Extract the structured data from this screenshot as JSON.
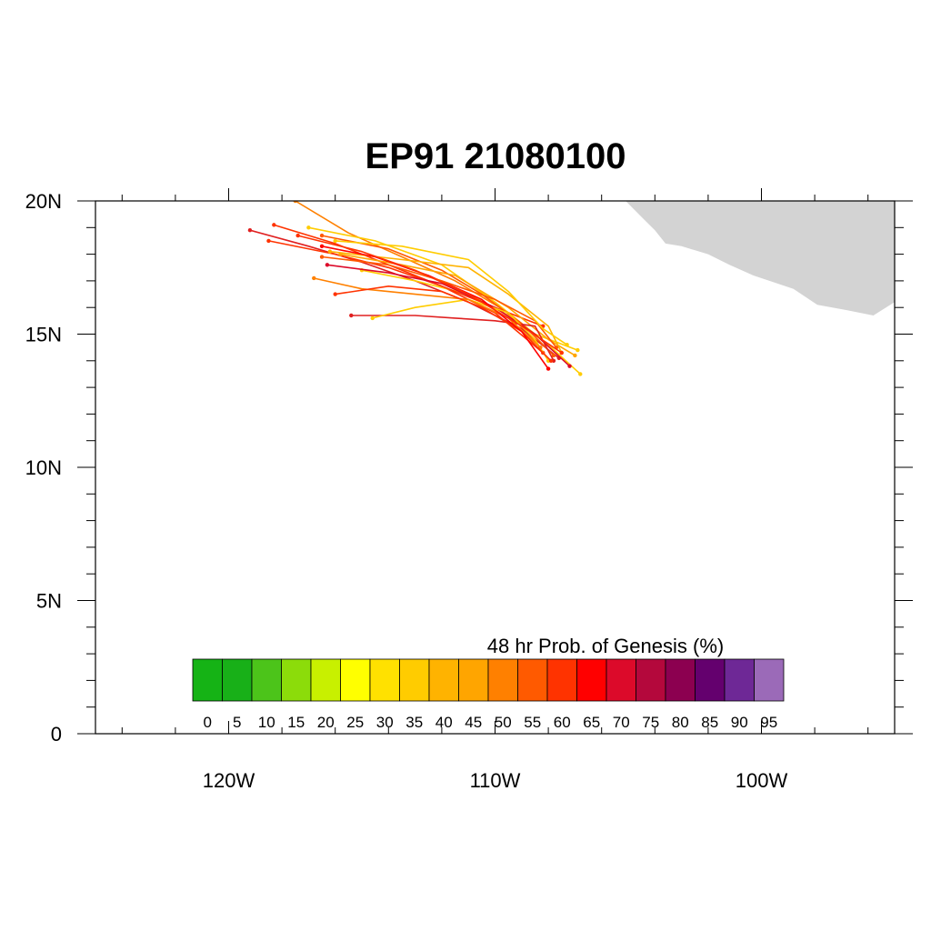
{
  "title": "EP91 21080100",
  "axes": {
    "lat_labels": [
      "20N",
      "15N",
      "10N",
      "5N",
      "0"
    ],
    "lon_labels": [
      "120W",
      "110W",
      "100W"
    ],
    "lat_range": [
      0,
      20
    ],
    "lon_range": [
      -125,
      -95
    ]
  },
  "colorbar": {
    "title": "48 hr Prob. of Genesis (%)",
    "levels": [
      "0",
      "5",
      "10",
      "15",
      "20",
      "25",
      "30",
      "35",
      "40",
      "45",
      "50",
      "55",
      "60",
      "65",
      "70",
      "75",
      "80",
      "85",
      "90",
      "95"
    ],
    "colors": [
      "#15b315",
      "#18b018",
      "#4cc41a",
      "#8cdc0a",
      "#c8f000",
      "#ffff00",
      "#ffe100",
      "#ffcc00",
      "#ffb300",
      "#ffa500",
      "#ff8000",
      "#ff5a00",
      "#ff3300",
      "#ff0000",
      "#dc0a2a",
      "#b4083c",
      "#8c0050",
      "#64006e",
      "#6e2896",
      "#9b6ab8"
    ]
  },
  "land": {
    "color": "#d3d3d3"
  },
  "chart_data": {
    "type": "line",
    "tracks": [
      {
        "color": "#ff8000",
        "points": [
          [
            -117.5,
            20.0
          ],
          [
            -115.5,
            18.8
          ],
          [
            -113.5,
            17.9
          ],
          [
            -111.5,
            17.0
          ],
          [
            -109.5,
            15.8
          ],
          [
            -108.3,
            14.5
          ]
        ]
      },
      {
        "color": "#e02020",
        "points": [
          [
            -119.2,
            18.9
          ],
          [
            -117.0,
            18.3
          ],
          [
            -115.0,
            17.7
          ],
          [
            -113.0,
            17.0
          ],
          [
            -111.0,
            16.2
          ],
          [
            -109.0,
            15.2
          ],
          [
            -107.6,
            14.1
          ]
        ]
      },
      {
        "color": "#ff3300",
        "points": [
          [
            -118.3,
            19.1
          ],
          [
            -116.0,
            18.4
          ],
          [
            -114.0,
            17.6
          ],
          [
            -112.0,
            16.8
          ],
          [
            -110.0,
            15.8
          ],
          [
            -108.2,
            14.3
          ]
        ]
      },
      {
        "color": "#ffcc00",
        "points": [
          [
            -117.0,
            19.0
          ],
          [
            -114.5,
            18.5
          ],
          [
            -112.0,
            17.6
          ],
          [
            -110.0,
            16.2
          ],
          [
            -108.5,
            15.0
          ],
          [
            -106.9,
            14.4
          ]
        ]
      },
      {
        "color": "#ffcc00",
        "points": [
          [
            -115.0,
            17.4
          ],
          [
            -113.0,
            17.0
          ],
          [
            -111.0,
            16.5
          ],
          [
            -109.5,
            15.7
          ],
          [
            -108.0,
            14.6
          ],
          [
            -106.8,
            13.5
          ]
        ]
      },
      {
        "color": "#ff5a00",
        "points": [
          [
            -116.5,
            18.7
          ],
          [
            -114.0,
            18.2
          ],
          [
            -112.0,
            17.4
          ],
          [
            -110.5,
            16.5
          ],
          [
            -109.0,
            15.4
          ],
          [
            -107.8,
            14.2
          ]
        ]
      },
      {
        "color": "#ff3300",
        "points": [
          [
            -118.5,
            18.5
          ],
          [
            -116.0,
            18.0
          ],
          [
            -114.0,
            17.5
          ],
          [
            -112.0,
            16.8
          ],
          [
            -110.0,
            16.0
          ],
          [
            -108.2,
            15.3
          ]
        ]
      },
      {
        "color": "#ffa500",
        "points": [
          [
            -115.8,
            18.0
          ],
          [
            -113.5,
            17.6
          ],
          [
            -111.5,
            17.2
          ],
          [
            -109.5,
            16.0
          ],
          [
            -108.0,
            14.8
          ],
          [
            -107.0,
            14.2
          ]
        ]
      },
      {
        "color": "#dc0a2a",
        "points": [
          [
            -116.3,
            17.6
          ],
          [
            -114.0,
            17.3
          ],
          [
            -112.0,
            16.9
          ],
          [
            -110.0,
            16.0
          ],
          [
            -108.5,
            15.0
          ],
          [
            -107.2,
            13.8
          ]
        ]
      },
      {
        "color": "#e02020",
        "points": [
          [
            -115.4,
            15.7
          ],
          [
            -113.0,
            15.7
          ],
          [
            -111.5,
            15.6
          ],
          [
            -110.0,
            15.5
          ],
          [
            -108.5,
            15.3
          ],
          [
            -107.8,
            14.0
          ]
        ]
      },
      {
        "color": "#ffcc00",
        "points": [
          [
            -114.6,
            15.6
          ],
          [
            -113.0,
            16.0
          ],
          [
            -111.0,
            16.3
          ],
          [
            -109.5,
            15.8
          ],
          [
            -108.5,
            14.8
          ],
          [
            -108.0,
            14.0
          ]
        ]
      },
      {
        "color": "#ff8000",
        "points": [
          [
            -116.8,
            17.1
          ],
          [
            -115.0,
            16.7
          ],
          [
            -113.0,
            16.5
          ],
          [
            -111.0,
            16.3
          ],
          [
            -109.5,
            15.6
          ],
          [
            -108.3,
            14.5
          ]
        ]
      },
      {
        "color": "#ff3300",
        "points": [
          [
            -116.0,
            16.5
          ],
          [
            -114.0,
            16.8
          ],
          [
            -112.0,
            16.6
          ],
          [
            -110.5,
            16.0
          ],
          [
            -109.0,
            15.1
          ],
          [
            -107.9,
            14.0
          ]
        ]
      },
      {
        "color": "#ffb300",
        "points": [
          [
            -116.2,
            18.1
          ],
          [
            -113.5,
            17.8
          ],
          [
            -111.0,
            17.5
          ],
          [
            -109.5,
            16.5
          ],
          [
            -108.0,
            15.3
          ],
          [
            -107.5,
            14.3
          ]
        ]
      },
      {
        "color": "#ff0000",
        "points": [
          [
            -116.5,
            18.3
          ],
          [
            -114.5,
            17.9
          ],
          [
            -112.5,
            17.2
          ],
          [
            -110.5,
            16.3
          ],
          [
            -109.0,
            15.1
          ],
          [
            -108.0,
            13.7
          ]
        ]
      },
      {
        "color": "#ff5a00",
        "points": [
          [
            -116.5,
            17.9
          ],
          [
            -114.0,
            17.6
          ],
          [
            -112.0,
            17.0
          ],
          [
            -110.0,
            16.3
          ],
          [
            -108.5,
            15.5
          ],
          [
            -107.7,
            14.5
          ]
        ]
      },
      {
        "color": "#ffcc00",
        "points": [
          [
            -116.0,
            18.5
          ],
          [
            -113.5,
            18.3
          ],
          [
            -111.0,
            17.8
          ],
          [
            -109.5,
            16.6
          ],
          [
            -108.2,
            15.2
          ],
          [
            -107.3,
            14.6
          ]
        ]
      },
      {
        "color": "#ff3300",
        "points": [
          [
            -117.4,
            18.7
          ],
          [
            -115.0,
            18.1
          ],
          [
            -113.0,
            17.4
          ],
          [
            -111.0,
            16.5
          ],
          [
            -109.0,
            15.3
          ],
          [
            -107.5,
            14.3
          ]
        ]
      }
    ]
  }
}
